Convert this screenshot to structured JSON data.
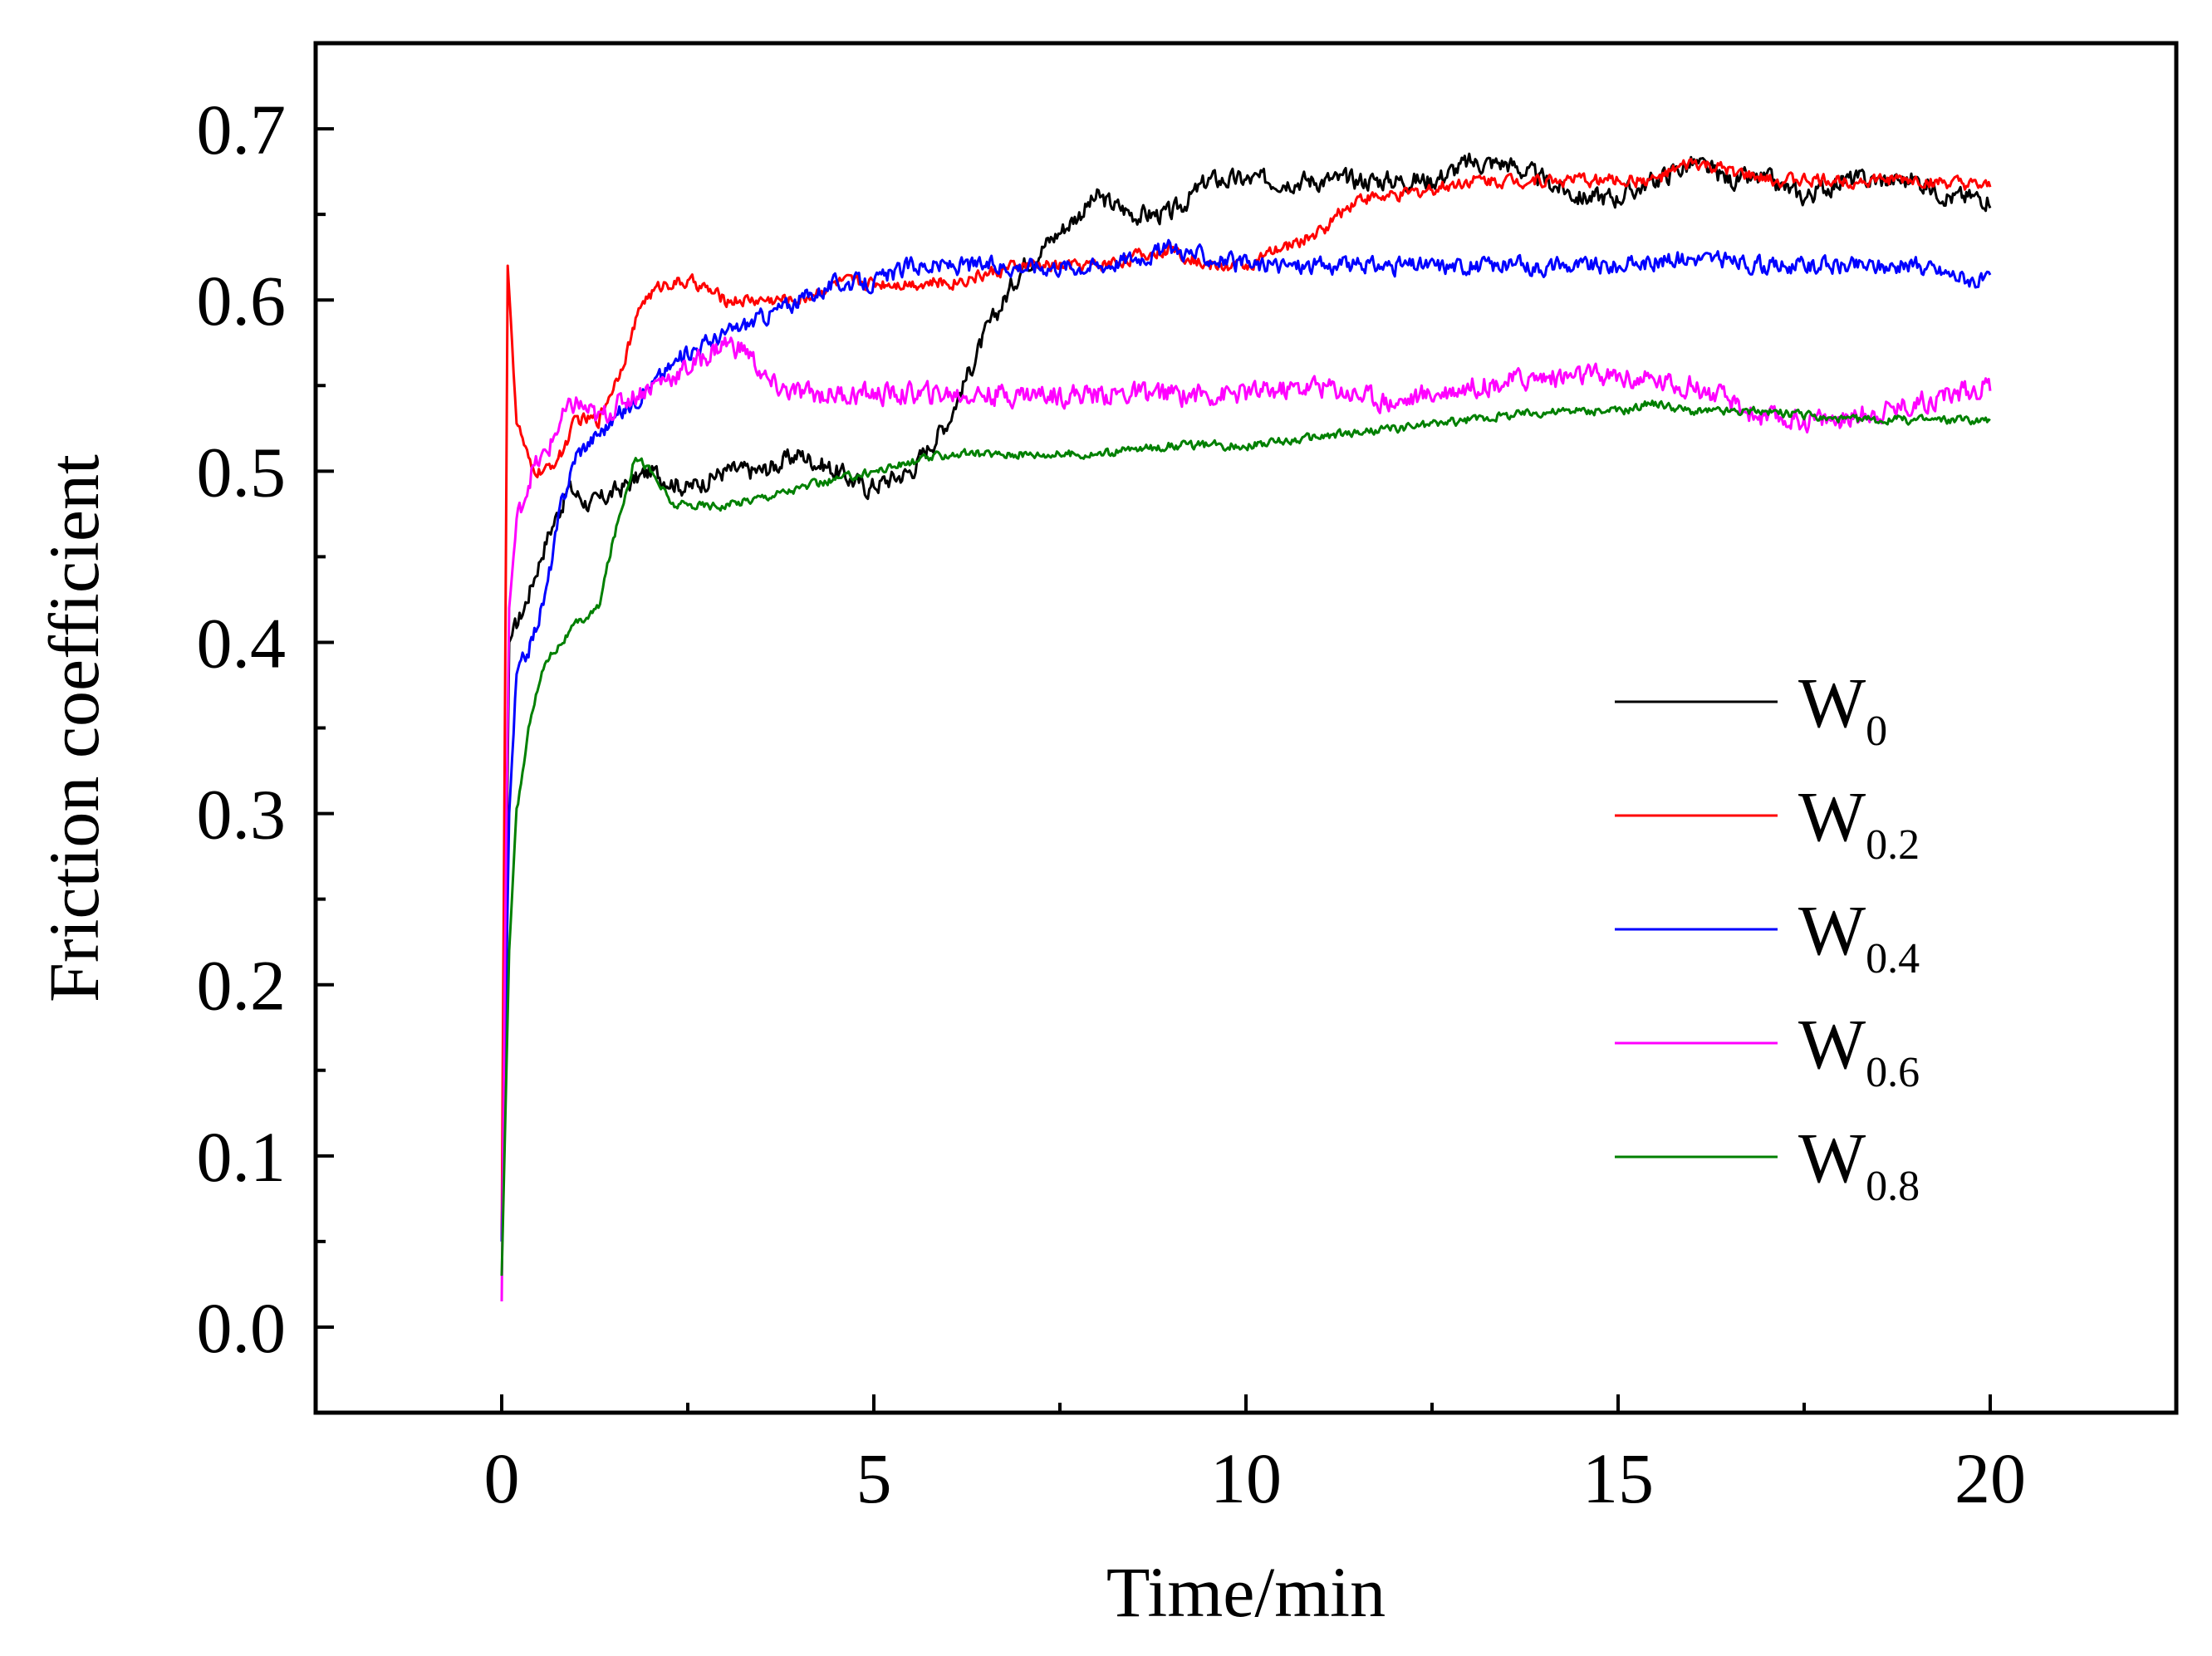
{
  "chart_data": {
    "type": "line",
    "title": "",
    "xlabel": "Time/min",
    "ylabel": "Friction coefficient",
    "xlim": [
      -2.5,
      22.5
    ],
    "ylim": [
      -0.05,
      0.75
    ],
    "x_ticks": [
      0,
      5,
      10,
      15,
      20
    ],
    "x_tick_labels": [
      "0",
      "5",
      "10",
      "15",
      "20"
    ],
    "y_ticks": [
      0.0,
      0.1,
      0.2,
      0.3,
      0.4,
      0.5,
      0.6,
      0.7
    ],
    "y_tick_labels": [
      "0.0",
      "0.1",
      "0.2",
      "0.3",
      "0.4",
      "0.5",
      "0.6",
      "0.7"
    ],
    "grid": false,
    "legend_position": "right-middle",
    "series": [
      {
        "name": "W0",
        "label_main": "W",
        "label_sub": "0",
        "color": "#000000",
        "x": [
          0,
          0.1,
          0.3,
          0.6,
          0.9,
          1.2,
          1.6,
          2.0,
          2.5,
          3.0,
          3.5,
          4.0,
          4.5,
          4.9,
          5.5,
          6.0,
          6.5,
          7.0,
          7.5,
          8.0,
          8.5,
          9.0,
          9.5,
          10.0,
          10.5,
          11.0,
          11.5,
          12.0,
          12.5,
          13.0,
          13.5,
          14.0,
          14.5,
          15.0,
          15.5,
          16.0,
          16.5,
          17.0,
          17.5,
          18.0,
          18.5,
          19.0,
          19.5,
          20.0
        ],
        "y": [
          0.05,
          0.4,
          0.42,
          0.46,
          0.49,
          0.48,
          0.49,
          0.5,
          0.49,
          0.5,
          0.5,
          0.51,
          0.5,
          0.49,
          0.5,
          0.53,
          0.58,
          0.62,
          0.64,
          0.66,
          0.65,
          0.65,
          0.67,
          0.67,
          0.67,
          0.67,
          0.67,
          0.67,
          0.67,
          0.68,
          0.68,
          0.67,
          0.66,
          0.66,
          0.67,
          0.68,
          0.67,
          0.67,
          0.66,
          0.67,
          0.67,
          0.67,
          0.66,
          0.66
        ],
        "noise": 0.009
      },
      {
        "name": "W0.2",
        "label_main": "W",
        "label_sub": "0.2",
        "color": "#ff0000",
        "x": [
          0,
          0.08,
          0.2,
          0.4,
          0.6,
          0.8,
          1.0,
          1.3,
          1.6,
          1.9,
          2.2,
          2.6,
          3.0,
          3.5,
          4.0,
          4.5,
          5.0,
          6.0,
          7.0,
          8.0,
          9.0,
          9.5,
          10.0,
          10.5,
          11.0,
          11.5,
          12.0,
          13.0,
          14.0,
          15.0,
          15.5,
          16.0,
          17.0,
          18.0,
          19.0,
          20.0
        ],
        "y": [
          0.05,
          0.62,
          0.53,
          0.5,
          0.5,
          0.51,
          0.53,
          0.53,
          0.56,
          0.6,
          0.61,
          0.61,
          0.6,
          0.6,
          0.6,
          0.61,
          0.61,
          0.61,
          0.62,
          0.62,
          0.63,
          0.62,
          0.62,
          0.63,
          0.64,
          0.66,
          0.66,
          0.67,
          0.67,
          0.67,
          0.67,
          0.68,
          0.67,
          0.67,
          0.67,
          0.665
        ],
        "noise": 0.006
      },
      {
        "name": "W0.4",
        "label_main": "W",
        "label_sub": "0.4",
        "color": "#0000ff",
        "x": [
          0,
          0.1,
          0.2,
          0.4,
          0.6,
          0.8,
          1.0,
          1.5,
          2.0,
          2.5,
          3.0,
          3.5,
          4.0,
          4.5,
          5.0,
          5.5,
          6.0,
          7.0,
          8.0,
          9.0,
          10.0,
          11.0,
          12.0,
          13.0,
          14.0,
          15.0,
          16.0,
          17.0,
          18.0,
          19.0,
          20.0
        ],
        "y": [
          0.05,
          0.3,
          0.38,
          0.4,
          0.43,
          0.48,
          0.51,
          0.53,
          0.55,
          0.57,
          0.58,
          0.59,
          0.6,
          0.61,
          0.61,
          0.62,
          0.62,
          0.62,
          0.62,
          0.63,
          0.62,
          0.62,
          0.62,
          0.62,
          0.62,
          0.62,
          0.625,
          0.62,
          0.62,
          0.62,
          0.61
        ],
        "noise": 0.008
      },
      {
        "name": "W0.6",
        "label_main": "W",
        "label_sub": "0.6",
        "color": "#ff00ff",
        "x": [
          0,
          0.05,
          0.1,
          0.2,
          0.4,
          0.6,
          0.8,
          1.0,
          1.3,
          1.6,
          2.0,
          2.5,
          3.0,
          3.3,
          3.6,
          4.0,
          5.0,
          6.0,
          7.0,
          8.0,
          9.0,
          10.0,
          11.0,
          12.0,
          13.0,
          14.0,
          15.0,
          16.0,
          17.0,
          18.0,
          19.0,
          20.0
        ],
        "y": [
          0.015,
          0.25,
          0.42,
          0.47,
          0.5,
          0.51,
          0.53,
          0.54,
          0.53,
          0.54,
          0.55,
          0.56,
          0.575,
          0.57,
          0.55,
          0.545,
          0.545,
          0.545,
          0.545,
          0.545,
          0.545,
          0.545,
          0.55,
          0.54,
          0.55,
          0.555,
          0.555,
          0.55,
          0.53,
          0.53,
          0.54,
          0.55
        ],
        "noise": 0.01
      },
      {
        "name": "W0.8",
        "label_main": "W",
        "label_sub": "0.8",
        "color": "#008000",
        "x": [
          0,
          0.1,
          0.2,
          0.4,
          0.6,
          0.8,
          1.0,
          1.3,
          1.5,
          1.8,
          2.0,
          2.3,
          2.6,
          3.0,
          4.0,
          5.0,
          6.0,
          7.0,
          8.0,
          9.0,
          10.0,
          11.0,
          12.0,
          13.0,
          14.0,
          15.0,
          15.5,
          16.0,
          17.0,
          18.0,
          19.0,
          20.0
        ],
        "y": [
          0.03,
          0.22,
          0.3,
          0.36,
          0.39,
          0.4,
          0.41,
          0.42,
          0.46,
          0.51,
          0.5,
          0.48,
          0.48,
          0.48,
          0.49,
          0.5,
          0.51,
          0.51,
          0.51,
          0.515,
          0.515,
          0.52,
          0.525,
          0.53,
          0.535,
          0.535,
          0.54,
          0.535,
          0.535,
          0.53,
          0.53,
          0.53
        ],
        "noise": 0.004
      }
    ]
  }
}
